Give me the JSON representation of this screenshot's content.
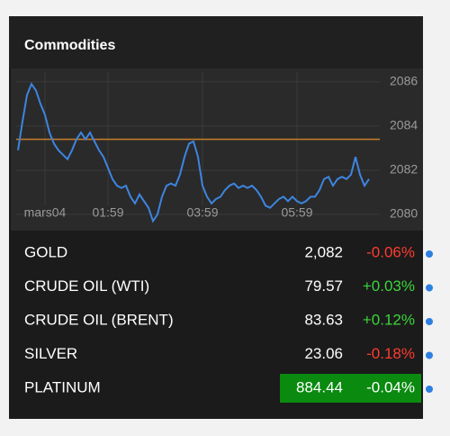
{
  "header": {
    "title": "Commodities"
  },
  "chart_data": {
    "type": "line",
    "values": [
      2082.9,
      2084.2,
      2085.4,
      2085.9,
      2085.6,
      2085.0,
      2084.5,
      2083.7,
      2083.2,
      2082.9,
      2082.7,
      2082.5,
      2082.9,
      2083.4,
      2083.7,
      2083.4,
      2083.7,
      2083.3,
      2082.9,
      2082.6,
      2082.1,
      2081.6,
      2081.3,
      2081.2,
      2081.3,
      2080.8,
      2080.5,
      2080.9,
      2080.6,
      2080.3,
      2079.7,
      2080.0,
      2080.8,
      2081.3,
      2081.4,
      2081.3,
      2081.8,
      2082.6,
      2083.2,
      2083.3,
      2082.6,
      2081.3,
      2080.8,
      2080.5,
      2080.7,
      2080.8,
      2081.1,
      2081.3,
      2081.4,
      2081.2,
      2081.3,
      2081.2,
      2081.3,
      2081.1,
      2080.8,
      2080.4,
      2080.3,
      2080.5,
      2080.7,
      2080.8,
      2080.6,
      2080.8,
      2080.6,
      2080.5,
      2080.6,
      2080.8,
      2080.8,
      2081.1,
      2081.6,
      2081.7,
      2081.3,
      2081.6,
      2081.7,
      2081.6,
      2081.8,
      2082.6,
      2081.8,
      2081.3,
      2081.6
    ],
    "color": "#3d85e0",
    "reference_line": 2083.4,
    "reference_color": "#c87f2a",
    "xlim": [
      0,
      78
    ],
    "xticks": [
      {
        "value": 6,
        "label": "mars04"
      },
      {
        "value": 20,
        "label": "01:59"
      },
      {
        "value": 41,
        "label": "03:59"
      },
      {
        "value": 62,
        "label": "05:59"
      }
    ],
    "ylim": [
      2079.35,
      2086.6
    ],
    "yticks": [
      2080,
      2082,
      2084,
      2086
    ],
    "grid": true
  },
  "table": {
    "rows": [
      {
        "name": "GOLD",
        "price": "2,082",
        "change": "-0.06%",
        "change_color": "#ff3b2f"
      },
      {
        "name": "CRUDE OIL (WTI)",
        "price": "79.57",
        "change": "+0.03%",
        "change_color": "#3ad63a"
      },
      {
        "name": "CRUDE OIL (BRENT)",
        "price": "83.63",
        "change": "+0.12%",
        "change_color": "#3ad63a"
      },
      {
        "name": "SILVER",
        "price": "23.06",
        "change": "-0.18%",
        "change_color": "#ff3b2f"
      },
      {
        "name": "PLATINUM",
        "price": "884.44",
        "change": "-0.04%",
        "change_color": "#ffffff",
        "highlight": "#0a8a0f"
      }
    ]
  }
}
